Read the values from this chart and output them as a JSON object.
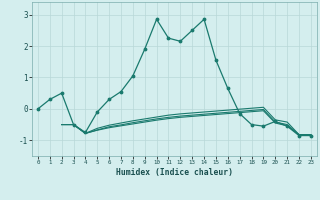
{
  "xlabel": "Humidex (Indice chaleur)",
  "background_color": "#d4eeee",
  "grid_color": "#b8d8d8",
  "line_color": "#1a7a6e",
  "xlim": [
    -0.5,
    23.5
  ],
  "ylim": [
    -1.5,
    3.4
  ],
  "yticks": [
    -1,
    0,
    1,
    2,
    3
  ],
  "xticks": [
    0,
    1,
    2,
    3,
    4,
    5,
    6,
    7,
    8,
    9,
    10,
    11,
    12,
    13,
    14,
    15,
    16,
    17,
    18,
    19,
    20,
    21,
    22,
    23
  ],
  "series1_x": [
    0,
    1,
    2,
    3,
    4,
    5,
    6,
    7,
    8,
    9,
    10,
    11,
    12,
    13,
    14,
    15,
    16,
    17,
    18,
    19,
    20,
    21,
    22,
    23
  ],
  "series1_y": [
    0.0,
    0.3,
    0.5,
    -0.5,
    -0.75,
    -0.1,
    0.3,
    0.55,
    1.05,
    1.9,
    2.85,
    2.25,
    2.15,
    2.5,
    2.85,
    1.55,
    0.65,
    -0.15,
    -0.5,
    -0.55,
    -0.4,
    -0.55,
    -0.85,
    -0.85
  ],
  "series2_x": [
    2,
    3,
    4,
    5,
    6,
    7,
    8,
    9,
    10,
    11,
    12,
    13,
    14,
    15,
    16,
    17,
    18,
    19,
    20,
    21,
    22,
    23
  ],
  "series2_y": [
    -0.5,
    -0.5,
    -0.78,
    -0.62,
    -0.52,
    -0.45,
    -0.38,
    -0.32,
    -0.26,
    -0.2,
    -0.16,
    -0.13,
    -0.1,
    -0.07,
    -0.04,
    -0.01,
    0.02,
    0.05,
    -0.35,
    -0.42,
    -0.82,
    -0.82
  ],
  "series3_x": [
    2,
    3,
    4,
    5,
    6,
    7,
    8,
    9,
    10,
    11,
    12,
    13,
    14,
    15,
    16,
    17,
    18,
    19,
    20,
    21,
    22,
    23
  ],
  "series3_y": [
    -0.5,
    -0.5,
    -0.78,
    -0.67,
    -0.57,
    -0.51,
    -0.44,
    -0.38,
    -0.32,
    -0.27,
    -0.23,
    -0.2,
    -0.17,
    -0.14,
    -0.11,
    -0.08,
    -0.05,
    -0.02,
    -0.42,
    -0.5,
    -0.82,
    -0.82
  ],
  "series4_x": [
    2,
    3,
    4,
    5,
    6,
    7,
    8,
    9,
    10,
    11,
    12,
    13,
    14,
    15,
    16,
    17,
    18,
    19,
    20,
    21,
    22,
    23
  ],
  "series4_y": [
    -0.5,
    -0.5,
    -0.78,
    -0.68,
    -0.6,
    -0.54,
    -0.48,
    -0.42,
    -0.36,
    -0.31,
    -0.27,
    -0.24,
    -0.21,
    -0.18,
    -0.15,
    -0.12,
    -0.09,
    -0.06,
    -0.45,
    -0.54,
    -0.82,
    -0.82
  ]
}
